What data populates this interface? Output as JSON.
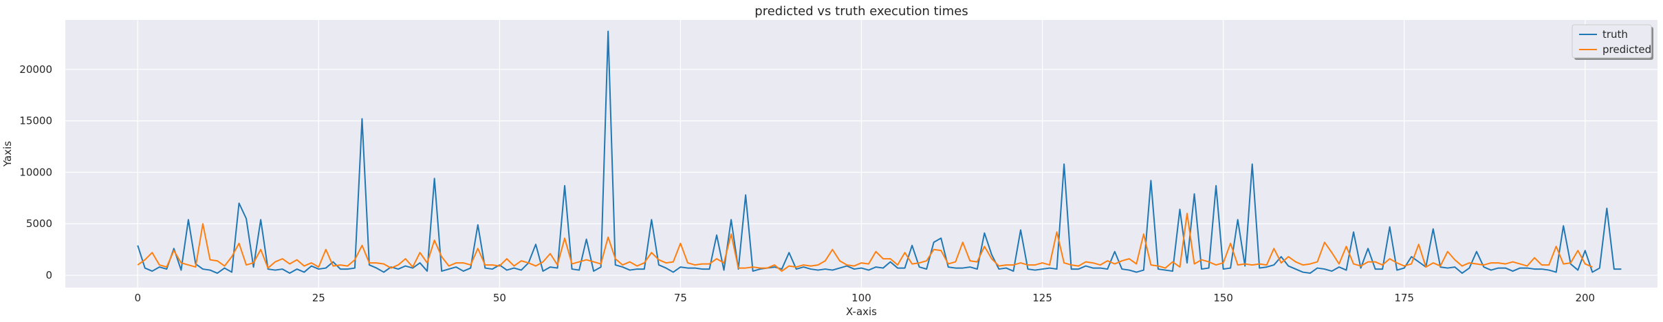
{
  "chart_data": {
    "type": "line",
    "title": "predicted vs truth execution times",
    "xlabel": "X-axis",
    "ylabel": "Yaxis",
    "xlim": [
      -10,
      210
    ],
    "ylim": [
      -1200,
      24800
    ],
    "xticks": [
      0,
      25,
      50,
      75,
      100,
      125,
      150,
      175,
      200
    ],
    "yticks": [
      0,
      5000,
      10000,
      15000,
      20000
    ],
    "grid": true,
    "legend_position": "top-right",
    "colors": {
      "background": "#eaeaf2",
      "grid": "#ffffff",
      "truth": "#1f77b4",
      "predicted": "#ff7f0e"
    },
    "series": [
      {
        "name": "truth",
        "values": [
          2900,
          700,
          400,
          800,
          600,
          2600,
          500,
          5400,
          1100,
          600,
          500,
          200,
          700,
          300,
          7000,
          5500,
          800,
          5400,
          600,
          500,
          600,
          200,
          600,
          300,
          900,
          600,
          700,
          1300,
          600,
          600,
          700,
          15200,
          1000,
          700,
          300,
          800,
          600,
          900,
          700,
          1200,
          400,
          9400,
          400,
          600,
          800,
          400,
          700,
          4900,
          700,
          600,
          1000,
          500,
          700,
          500,
          1200,
          3000,
          400,
          800,
          700,
          8700,
          600,
          500,
          3500,
          400,
          800,
          23700,
          1000,
          800,
          500,
          600,
          600,
          5400,
          1000,
          700,
          300,
          800,
          700,
          700,
          600,
          600,
          3900,
          500,
          5400,
          600,
          7800,
          400,
          600,
          700,
          800,
          600,
          2200,
          600,
          800,
          600,
          500,
          600,
          500,
          700,
          900,
          600,
          700,
          500,
          800,
          700,
          1300,
          700,
          700,
          2900,
          800,
          600,
          3200,
          3600,
          800,
          700,
          700,
          800,
          600,
          4100,
          2000,
          600,
          700,
          400,
          4400,
          600,
          500,
          600,
          700,
          600,
          10800,
          600,
          600,
          900,
          700,
          700,
          600,
          2300,
          600,
          500,
          300,
          500,
          9200,
          600,
          500,
          400,
          6400,
          1200,
          7900,
          600,
          700,
          8700,
          600,
          700,
          5400,
          900,
          10800,
          700,
          800,
          1000,
          1800,
          900,
          600,
          300,
          200,
          700,
          600,
          400,
          800,
          500,
          4200,
          700,
          2600,
          600,
          600,
          4700,
          500,
          700,
          1800,
          1300,
          800,
          4500,
          800,
          700,
          800,
          200,
          700,
          2300,
          800,
          500,
          700,
          700,
          400,
          700,
          700,
          600,
          600,
          500,
          300,
          4800,
          1100,
          500,
          2400,
          300,
          700,
          6500,
          600,
          600
        ]
      },
      {
        "name": "predicted",
        "values": [
          1000,
          1500,
          2200,
          1000,
          800,
          2400,
          1200,
          1000,
          800,
          5000,
          1500,
          1400,
          900,
          1800,
          3100,
          1000,
          1200,
          2500,
          700,
          1300,
          1600,
          1100,
          1500,
          900,
          1200,
          800,
          2500,
          900,
          1000,
          900,
          1500,
          2900,
          1200,
          1200,
          1100,
          700,
          1000,
          1600,
          800,
          2200,
          1200,
          3400,
          1800,
          900,
          1200,
          1200,
          1000,
          2600,
          1000,
          1000,
          900,
          1600,
          900,
          1400,
          1200,
          900,
          1300,
          2100,
          1000,
          3600,
          1100,
          1300,
          1500,
          1300,
          1100,
          3700,
          1600,
          1000,
          1300,
          900,
          1200,
          2200,
          1500,
          1200,
          1300,
          3100,
          1200,
          1000,
          1100,
          1100,
          1600,
          1200,
          4000,
          700,
          700,
          800,
          700,
          700,
          1000,
          400,
          900,
          800,
          1000,
          900,
          1000,
          1400,
          2500,
          1400,
          1000,
          900,
          1200,
          1100,
          2300,
          1600,
          1600,
          1000,
          2200,
          1100,
          1200,
          1400,
          2500,
          2400,
          1100,
          1300,
          3200,
          1400,
          1300,
          2800,
          1600,
          900,
          1000,
          1000,
          1200,
          1000,
          1000,
          1200,
          1000,
          4200,
          1200,
          1000,
          900,
          1300,
          1200,
          1000,
          1400,
          1100,
          1400,
          1600,
          1100,
          4000,
          1000,
          900,
          700,
          1300,
          800,
          6000,
          1100,
          1500,
          1300,
          1000,
          1200,
          3100,
          1000,
          1100,
          1000,
          1100,
          1000,
          2600,
          1200,
          1800,
          1300,
          1000,
          1100,
          1300,
          3200,
          2200,
          1100,
          2800,
          1100,
          900,
          1300,
          1300,
          1000,
          1600,
          1200,
          900,
          1100,
          3000,
          800,
          1200,
          900,
          2300,
          1500,
          900,
          1200,
          1100,
          1000,
          1200,
          1200,
          1100,
          1300,
          1100,
          900,
          1700,
          1000,
          1000,
          2800,
          1100,
          1200,
          2400,
          1100,
          800
        ]
      }
    ]
  }
}
